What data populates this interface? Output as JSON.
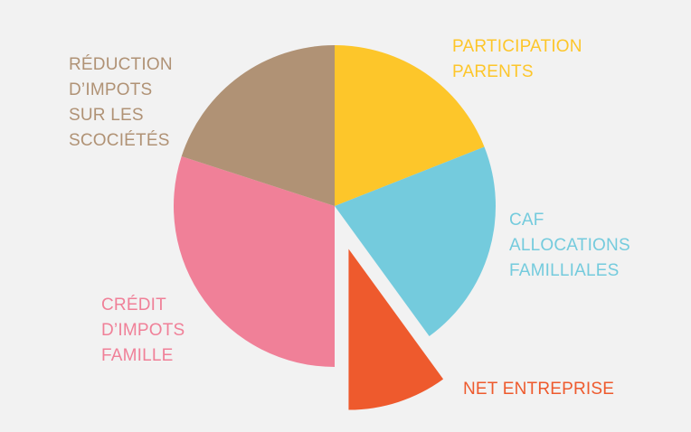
{
  "chart_data": {
    "type": "pie",
    "title": "",
    "slices": [
      {
        "label": "PARTICIPATION\nPARENTS",
        "value": 19,
        "color": "#FDC62A",
        "exploded": false
      },
      {
        "label": "CAF\nALLOCATIONS\nFAMILLIALES",
        "value": 21,
        "color": "#74CBDD",
        "exploded": false
      },
      {
        "label": "NET ENTREPRISE",
        "value": 10,
        "color": "#EE5A2D",
        "exploded": true
      },
      {
        "label": "CRÉDIT\nD’IMPOTS\nFAMILLE",
        "value": 30,
        "color": "#F08098",
        "exploded": false
      },
      {
        "label": "RÉDUCTION\nD’IMPOTS\nSUR LES\nSCOCIÉTÉS",
        "value": 20,
        "color": "#B09275",
        "exploded": false
      }
    ],
    "start_angle": "top",
    "direction": "clockwise",
    "background": "#F2F2F2"
  }
}
